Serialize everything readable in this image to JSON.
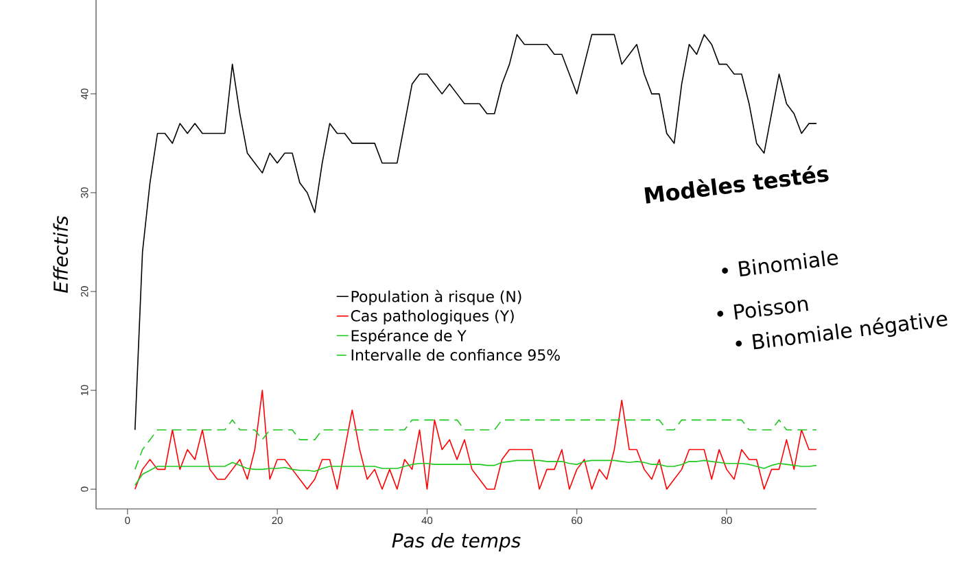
{
  "chart_data": {
    "type": "line",
    "xlabel": "Pas de temps",
    "ylabel": "Effectifs",
    "x": [
      1,
      2,
      3,
      4,
      5,
      6,
      7,
      8,
      9,
      10,
      11,
      12,
      13,
      14,
      15,
      16,
      17,
      18,
      19,
      20,
      21,
      22,
      23,
      24,
      25,
      26,
      27,
      28,
      29,
      30,
      31,
      32,
      33,
      34,
      35,
      36,
      37,
      38,
      39,
      40,
      41,
      42,
      43,
      44,
      45,
      46,
      47,
      48,
      49,
      50,
      51,
      52,
      53,
      54,
      55,
      56,
      57,
      58,
      59,
      60,
      61,
      62,
      63,
      64,
      65,
      66,
      67,
      68,
      69,
      70,
      71,
      72,
      73,
      74,
      75,
      76,
      77,
      78,
      79,
      80,
      81,
      82,
      83,
      84,
      85,
      86,
      87,
      88,
      89,
      90,
      91,
      92
    ],
    "xlim": [
      -4.2,
      92
    ],
    "ylim": [
      -2,
      49.5
    ],
    "xticks": [
      0,
      20,
      40,
      60,
      80
    ],
    "yticks": [
      0,
      10,
      20,
      30,
      40
    ],
    "legend": "center",
    "series": [
      {
        "name": "Population à risque (N)",
        "color": "#000000",
        "values": [
          6,
          24,
          31,
          36,
          36,
          35,
          37,
          36,
          37,
          36,
          36,
          36,
          36,
          43,
          38,
          34,
          33,
          32,
          34,
          33,
          34,
          34,
          31,
          30,
          28,
          33,
          37,
          36,
          36,
          35,
          35,
          35,
          35,
          33,
          33,
          33,
          37,
          41,
          42,
          42,
          41,
          40,
          41,
          40,
          39,
          39,
          39,
          38,
          38,
          41,
          43,
          46,
          45,
          45,
          45,
          45,
          44,
          44,
          42,
          40,
          43,
          46,
          46,
          46,
          46,
          43,
          44,
          45,
          42,
          40,
          40,
          36,
          35,
          41,
          45,
          44,
          46,
          45,
          43,
          43,
          42,
          42,
          39,
          35,
          34,
          38,
          42,
          39,
          38,
          36,
          37,
          37
        ]
      },
      {
        "name": "Cas pathologiques (Y)",
        "color": "#ff0000",
        "values": [
          0,
          2,
          3,
          2,
          2,
          6,
          2,
          4,
          3,
          6,
          2,
          1,
          1,
          2,
          3,
          1,
          4,
          10,
          1,
          3,
          3,
          2,
          1,
          0,
          1,
          3,
          3,
          0,
          4,
          8,
          4,
          1,
          2,
          0,
          2,
          0,
          3,
          2,
          6,
          0,
          7,
          4,
          5,
          3,
          5,
          2,
          1,
          0,
          0,
          3,
          4,
          4,
          4,
          4,
          0,
          2,
          2,
          4,
          0,
          2,
          3,
          0,
          2,
          1,
          4,
          9,
          4,
          4,
          2,
          1,
          3,
          0,
          1,
          2,
          4,
          4,
          4,
          1,
          4,
          2,
          1,
          4,
          3,
          3,
          0,
          2,
          2,
          5,
          2,
          6,
          4,
          4
        ]
      },
      {
        "name": "Espérance de Y",
        "color": "#1ec81e",
        "values": [
          0.4,
          1.5,
          1.9,
          2.3,
          2.3,
          2.3,
          2.3,
          2.3,
          2.3,
          2.3,
          2.3,
          2.3,
          2.3,
          2.7,
          2.4,
          2.1,
          2.0,
          2.0,
          2.1,
          2.1,
          2.2,
          2.0,
          1.9,
          1.9,
          1.8,
          2.1,
          2.3,
          2.3,
          2.3,
          2.3,
          2.3,
          2.3,
          2.3,
          2.1,
          2.1,
          2.1,
          2.3,
          2.5,
          2.6,
          2.6,
          2.5,
          2.5,
          2.5,
          2.5,
          2.5,
          2.5,
          2.5,
          2.4,
          2.4,
          2.7,
          2.8,
          2.9,
          2.9,
          2.9,
          2.9,
          2.8,
          2.8,
          2.8,
          2.6,
          2.5,
          2.8,
          2.9,
          2.9,
          2.9,
          2.9,
          2.8,
          2.7,
          2.8,
          2.7,
          2.5,
          2.5,
          2.3,
          2.3,
          2.5,
          2.8,
          2.8,
          2.9,
          2.8,
          2.7,
          2.6,
          2.6,
          2.6,
          2.5,
          2.3,
          2.1,
          2.4,
          2.6,
          2.5,
          2.4,
          2.3,
          2.3,
          2.4
        ]
      },
      {
        "name": "Intervalle de confiance 95%",
        "color": "#1ec81e",
        "line_style": "dashed",
        "values": [
          2,
          4,
          5,
          6,
          6,
          6,
          6,
          6,
          6,
          6,
          6,
          6,
          6,
          7,
          6,
          6,
          6,
          5,
          6,
          6,
          6,
          6,
          5,
          5,
          5,
          6,
          6,
          6,
          6,
          6,
          6,
          6,
          6,
          6,
          6,
          6,
          6,
          7,
          7,
          7,
          7,
          7,
          7,
          7,
          6,
          6,
          6,
          6,
          6,
          7,
          7,
          7,
          7,
          7,
          7,
          7,
          7,
          7,
          7,
          7,
          7,
          7,
          7,
          7,
          7,
          7,
          7,
          7,
          7,
          7,
          7,
          6,
          6,
          7,
          7,
          7,
          7,
          7,
          7,
          7,
          7,
          7,
          6,
          6,
          6,
          6,
          7,
          6,
          6,
          6,
          6,
          6
        ]
      }
    ],
    "annotations": [
      "Modèles testés",
      "• Binomiale",
      "• Poisson",
      "• Binomiale négative"
    ]
  }
}
